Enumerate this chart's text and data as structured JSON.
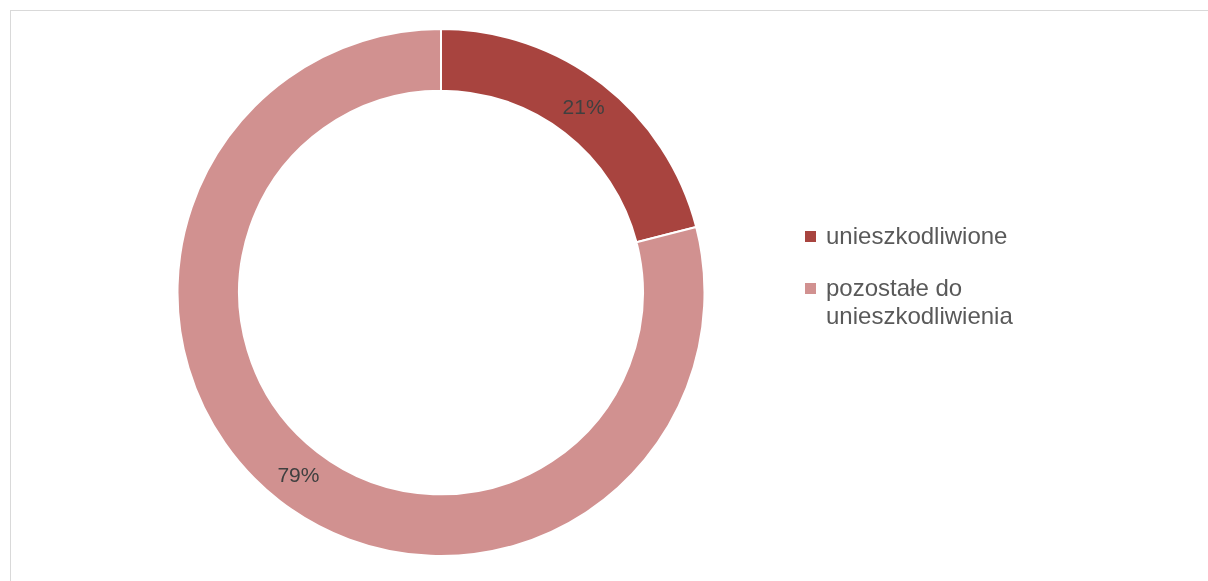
{
  "chart_data": {
    "type": "donut",
    "categories": [
      "unieszkodliwione",
      "pozostałe do unieszkodliwienia"
    ],
    "values": [
      21,
      79
    ],
    "colors": [
      "#a8443f",
      "#d19190"
    ],
    "value_labels": [
      "21%",
      "79%"
    ],
    "legend": "right"
  }
}
